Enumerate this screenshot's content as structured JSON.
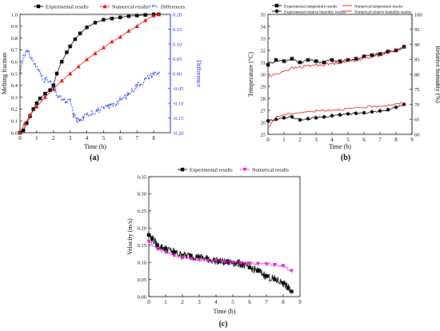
{
  "chart_data": [
    {
      "panel": "(a)",
      "type": "line",
      "xlabel": "Time (h)",
      "ylabel": "Melting fraction",
      "y2label": "Difference",
      "xlim": [
        0,
        9
      ],
      "ylim": [
        0,
        1.0
      ],
      "y2lim": [
        -0.2,
        0.2
      ],
      "xticks": [
        "0",
        "1",
        "2",
        "3",
        "4",
        "5",
        "6",
        "7",
        "8"
      ],
      "yticks": [
        "0.0",
        "0.1",
        "0.2",
        "0.3",
        "0.4",
        "0.5",
        "0.6",
        "0.7",
        "0.8",
        "0.9",
        "1.0"
      ],
      "y2ticks": [
        "-0.20",
        "-0.15",
        "-0.10",
        "-0.05",
        "0.00",
        "0.05",
        "0.10",
        "0.15",
        "0.20"
      ],
      "legend_position": "top",
      "colors": {
        "experimental": "#000000",
        "numerical": "#e01010",
        "differences": "#1a2ad8"
      },
      "series": [
        {
          "name": "Experimental results",
          "axis": "left",
          "marker": "square",
          "x": [
            0,
            0.2,
            0.4,
            0.6,
            0.8,
            1.0,
            1.2,
            1.5,
            1.8,
            2.0,
            2.2,
            2.5,
            2.8,
            3.0,
            3.3,
            3.6,
            4.0,
            4.5,
            5.0,
            5.5,
            6.0,
            6.5,
            7.0,
            7.5,
            8.0,
            8.3
          ],
          "y": [
            0,
            0.02,
            0.08,
            0.14,
            0.2,
            0.25,
            0.29,
            0.33,
            0.36,
            0.4,
            0.5,
            0.6,
            0.68,
            0.73,
            0.79,
            0.84,
            0.89,
            0.93,
            0.955,
            0.965,
            0.975,
            0.985,
            0.99,
            0.995,
            1.0,
            1.0
          ]
        },
        {
          "name": "Numerical results",
          "axis": "left",
          "marker": "triangle",
          "x": [
            0,
            0.3,
            0.6,
            1.0,
            1.5,
            2.0,
            2.5,
            3.0,
            3.5,
            4.0,
            4.5,
            5.0,
            5.5,
            6.0,
            6.5,
            7.0,
            7.5,
            8.0,
            8.3
          ],
          "y": [
            0,
            0.08,
            0.15,
            0.22,
            0.3,
            0.37,
            0.44,
            0.5,
            0.56,
            0.62,
            0.67,
            0.72,
            0.77,
            0.81,
            0.86,
            0.9,
            0.95,
            0.99,
            1.0
          ]
        },
        {
          "name": "Differences",
          "axis": "right",
          "marker": "star",
          "x": [
            0,
            0.2,
            0.4,
            0.5,
            0.7,
            0.9,
            1.1,
            1.3,
            1.5,
            1.8,
            2.0,
            2.3,
            2.6,
            2.8,
            3.0,
            3.2,
            3.4,
            3.6,
            3.8,
            4.0,
            4.3,
            4.6,
            5.0,
            5.3,
            5.6,
            6.0,
            6.5,
            7.0,
            7.5,
            8.0,
            8.3
          ],
          "y": [
            0.0,
            0.06,
            0.075,
            0.07,
            0.05,
            0.03,
            0.01,
            -0.01,
            -0.02,
            -0.03,
            -0.05,
            -0.08,
            -0.09,
            -0.1,
            -0.09,
            -0.14,
            -0.155,
            -0.16,
            -0.15,
            -0.14,
            -0.13,
            -0.125,
            -0.12,
            -0.11,
            -0.105,
            -0.09,
            -0.07,
            -0.04,
            -0.02,
            0.0,
            0.0
          ]
        }
      ]
    },
    {
      "panel": "(b)",
      "type": "line",
      "xlabel": "Time (h)",
      "ylabel": "Temperature (°C)",
      "y2label": "Relative humidity (%)",
      "xlim": [
        0,
        9
      ],
      "ylim": [
        25,
        35
      ],
      "y2lim": [
        60,
        100
      ],
      "xticks": [
        "0",
        "1",
        "2",
        "3",
        "4",
        "5",
        "6",
        "7",
        "8",
        "9"
      ],
      "yticks": [
        "25",
        "26",
        "27",
        "28",
        "29",
        "30",
        "31",
        "32",
        "33",
        "34",
        "35"
      ],
      "y2ticks": [
        "60",
        "65",
        "70",
        "75",
        "80",
        "85",
        "90",
        "95",
        "100"
      ],
      "legend_position": "top",
      "colors": {
        "experimental": "#000000",
        "numerical": "#e01010"
      },
      "series": [
        {
          "name": "Experimental temperature results",
          "axis": "left",
          "marker": "square",
          "x": [
            0,
            0.5,
            1.0,
            1.5,
            2.0,
            2.5,
            3.0,
            3.5,
            4.0,
            4.5,
            5.0,
            5.5,
            6.0,
            6.5,
            7.0,
            7.5,
            8.0,
            8.5
          ],
          "y": [
            30.8,
            31.2,
            31.1,
            31.3,
            31.0,
            31.2,
            31.1,
            31.0,
            31.2,
            31.1,
            31.2,
            31.3,
            31.5,
            31.6,
            31.7,
            31.9,
            32.0,
            32.3
          ]
        },
        {
          "name": "Numerical temperature results",
          "axis": "left",
          "marker": "none",
          "x": [
            0,
            0.5,
            1.0,
            1.5,
            2.0,
            2.5,
            3.0,
            3.5,
            4.0,
            4.5,
            5.0,
            5.5,
            6.0,
            6.5,
            7.0,
            7.5,
            8.0,
            8.5
          ],
          "y": [
            29.8,
            30.0,
            30.3,
            30.5,
            30.6,
            30.7,
            30.8,
            30.8,
            30.9,
            31.0,
            31.1,
            31.2,
            31.3,
            31.5,
            31.6,
            31.8,
            32.0,
            32.3
          ]
        },
        {
          "name": "Experimental relative humidity results",
          "axis": "right",
          "marker": "circle",
          "x": [
            0,
            0.5,
            1.0,
            1.5,
            2.0,
            2.5,
            3.0,
            3.5,
            4.0,
            4.5,
            5.0,
            5.5,
            6.0,
            6.5,
            7.0,
            7.5,
            8.0,
            8.5
          ],
          "y": [
            64.5,
            65,
            65.5,
            65.8,
            64.8,
            65.2,
            65.5,
            65.8,
            66.2,
            66.5,
            66.8,
            67,
            67.2,
            67.5,
            67.8,
            68.2,
            69,
            70
          ]
        },
        {
          "name": "Numerical relative humidity results",
          "axis": "right",
          "marker": "none",
          "x": [
            0,
            0.3,
            0.6,
            1.0,
            1.5,
            2.0,
            2.5,
            3.0,
            3.5,
            4.0,
            4.5,
            5.0,
            5.5,
            6.0,
            6.5,
            7.0,
            7.5,
            8.0,
            8.5
          ],
          "y": [
            62,
            64.5,
            66,
            66.5,
            67,
            67.3,
            67.5,
            67.8,
            68,
            68.2,
            68.3,
            68.5,
            68.7,
            69,
            69.2,
            69.5,
            69.7,
            70,
            70.5
          ]
        }
      ]
    },
    {
      "panel": "(c)",
      "type": "line",
      "xlabel": "Time (h)",
      "ylabel": "Velocity (m/s)",
      "xlim": [
        0,
        9
      ],
      "ylim": [
        0,
        0.35
      ],
      "xticks": [
        "0",
        "1",
        "2",
        "3",
        "4",
        "5",
        "6",
        "7",
        "8",
        "9"
      ],
      "yticks": [
        "0.00",
        "0.05",
        "0.10",
        "0.15",
        "0.20",
        "0.25",
        "0.30",
        "0.35"
      ],
      "legend_position": "top",
      "colors": {
        "experimental": "#000000",
        "numerical": "#e020d0"
      },
      "series": [
        {
          "name": "Experimental results",
          "marker": "square",
          "x": [
            0,
            0.2,
            0.5,
            1.0,
            1.5,
            2.0,
            2.5,
            3.0,
            3.5,
            4.0,
            4.5,
            5.0,
            5.5,
            6.0,
            6.5,
            7.0,
            7.5,
            8.0,
            8.3,
            8.5
          ],
          "y": [
            0.18,
            0.17,
            0.15,
            0.14,
            0.13,
            0.12,
            0.12,
            0.115,
            0.11,
            0.105,
            0.1,
            0.1,
            0.095,
            0.085,
            0.075,
            0.06,
            0.05,
            0.04,
            0.025,
            0.015
          ]
        },
        {
          "name": "Numerical results",
          "marker": "triangle-down",
          "x": [
            0,
            0.5,
            1.0,
            1.5,
            2.0,
            2.5,
            3.0,
            3.5,
            4.0,
            4.5,
            5.0,
            5.5,
            6.0,
            6.5,
            7.0,
            7.5,
            8.0,
            8.5
          ],
          "y": [
            0.16,
            0.14,
            0.13,
            0.12,
            0.115,
            0.11,
            0.108,
            0.105,
            0.104,
            0.102,
            0.1,
            0.098,
            0.097,
            0.096,
            0.095,
            0.093,
            0.09,
            0.075
          ]
        }
      ]
    }
  ]
}
